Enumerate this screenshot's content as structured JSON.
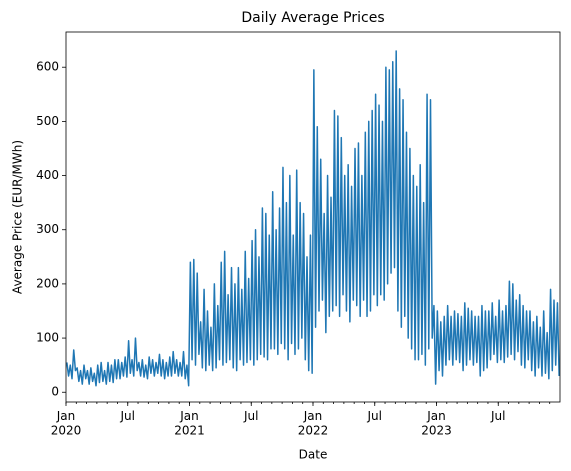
{
  "chart_data": {
    "type": "line",
    "title": "Daily Average Prices",
    "xlabel": "Date",
    "ylabel": "Average Price (EUR/MWh)",
    "color": "#1f77b4",
    "x": [
      "2020-01",
      "2020-02",
      "2020-03",
      "2020-04",
      "2020-05",
      "2020-06",
      "2020-07",
      "2020-08",
      "2020-09",
      "2020-10",
      "2020-11",
      "2020-12",
      "2021-01",
      "2021-02",
      "2021-03",
      "2021-04",
      "2021-05",
      "2021-06",
      "2021-07",
      "2021-08",
      "2021-09",
      "2021-10",
      "2021-11",
      "2021-12",
      "2022-01",
      "2022-02",
      "2022-03",
      "2022-04",
      "2022-05",
      "2022-06",
      "2022-07",
      "2022-08",
      "2022-09",
      "2022-10",
      "2022-11",
      "2022-12",
      "2023-01",
      "2023-02",
      "2023-03",
      "2023-04",
      "2023-05",
      "2023-06",
      "2023-07",
      "2023-08",
      "2023-09",
      "2023-10",
      "2023-11",
      "2023-12"
    ],
    "values": [
      [
        55,
        30,
        50,
        25,
        78,
        40
      ],
      [
        45,
        20,
        40,
        15,
        50,
        25
      ],
      [
        40,
        15,
        45,
        20,
        35,
        12
      ],
      [
        50,
        18,
        55,
        20,
        40,
        15
      ],
      [
        55,
        20,
        50,
        18,
        60,
        25
      ],
      [
        60,
        25,
        55,
        30,
        65,
        28
      ],
      [
        95,
        35,
        60,
        30,
        100,
        40
      ],
      [
        55,
        30,
        60,
        28,
        50,
        25
      ],
      [
        65,
        35,
        60,
        30,
        55,
        35
      ],
      [
        70,
        30,
        60,
        25,
        55,
        30
      ],
      [
        65,
        30,
        75,
        35,
        60,
        30
      ],
      [
        55,
        30,
        75,
        25,
        50,
        12
      ],
      [
        240,
        60,
        245,
        50,
        220,
        70
      ],
      [
        130,
        45,
        190,
        40,
        150,
        50
      ],
      [
        120,
        40,
        200,
        45,
        160,
        60
      ],
      [
        240,
        50,
        260,
        55,
        180,
        60
      ],
      [
        230,
        45,
        200,
        40,
        230,
        60
      ],
      [
        190,
        50,
        260,
        55,
        210,
        60
      ],
      [
        280,
        50,
        300,
        60,
        250,
        70
      ],
      [
        340,
        65,
        330,
        60,
        290,
        80
      ],
      [
        370,
        80,
        300,
        70,
        340,
        90
      ],
      [
        415,
        80,
        350,
        60,
        400,
        90
      ],
      [
        290,
        70,
        410,
        80,
        350,
        100
      ],
      [
        330,
        60,
        250,
        40,
        290,
        35
      ],
      [
        595,
        120,
        490,
        150,
        430,
        170
      ],
      [
        330,
        110,
        400,
        140,
        360,
        150
      ],
      [
        520,
        160,
        510,
        140,
        470,
        180
      ],
      [
        400,
        150,
        420,
        130,
        380,
        170
      ],
      [
        450,
        160,
        460,
        140,
        400,
        170
      ],
      [
        480,
        140,
        500,
        150,
        520,
        180
      ],
      [
        550,
        160,
        530,
        180,
        500,
        170
      ],
      [
        600,
        200,
        595,
        220,
        610,
        230
      ],
      [
        630,
        150,
        560,
        120,
        540,
        140
      ],
      [
        480,
        100,
        450,
        80,
        400,
        60
      ],
      [
        380,
        60,
        420,
        70,
        350,
        50
      ],
      [
        550,
        80,
        540,
        100,
        160,
        15
      ],
      [
        150,
        40,
        130,
        30,
        140,
        50
      ],
      [
        160,
        60,
        140,
        50,
        150,
        60
      ],
      [
        145,
        55,
        140,
        40,
        165,
        50
      ],
      [
        155,
        60,
        150,
        50,
        140,
        55
      ],
      [
        140,
        30,
        160,
        40,
        150,
        45
      ],
      [
        150,
        60,
        165,
        70,
        140,
        55
      ],
      [
        170,
        60,
        150,
        55,
        160,
        65
      ],
      [
        205,
        70,
        200,
        60,
        170,
        75
      ],
      [
        180,
        50,
        160,
        45,
        150,
        60
      ],
      [
        150,
        40,
        130,
        30,
        140,
        45
      ],
      [
        120,
        30,
        150,
        35,
        110,
        25
      ],
      [
        190,
        40,
        170,
        50,
        165,
        30
      ]
    ],
    "xlim": [
      "2020-01",
      "2023-12"
    ],
    "xticks": [
      {
        "value": "2020-01",
        "label": "Jan\n2020"
      },
      {
        "value": "2020-07",
        "label": "Jul"
      },
      {
        "value": "2021-01",
        "label": "Jan\n2021"
      },
      {
        "value": "2021-07",
        "label": "Jul"
      },
      {
        "value": "2022-01",
        "label": "Jan\n2022"
      },
      {
        "value": "2022-07",
        "label": "Jul"
      },
      {
        "value": "2023-01",
        "label": "Jan\n2023"
      },
      {
        "value": "2023-07",
        "label": "Jul"
      }
    ],
    "ylim": [
      -18,
      665
    ],
    "yticks": [
      0,
      100,
      200,
      300,
      400,
      500,
      600
    ]
  }
}
